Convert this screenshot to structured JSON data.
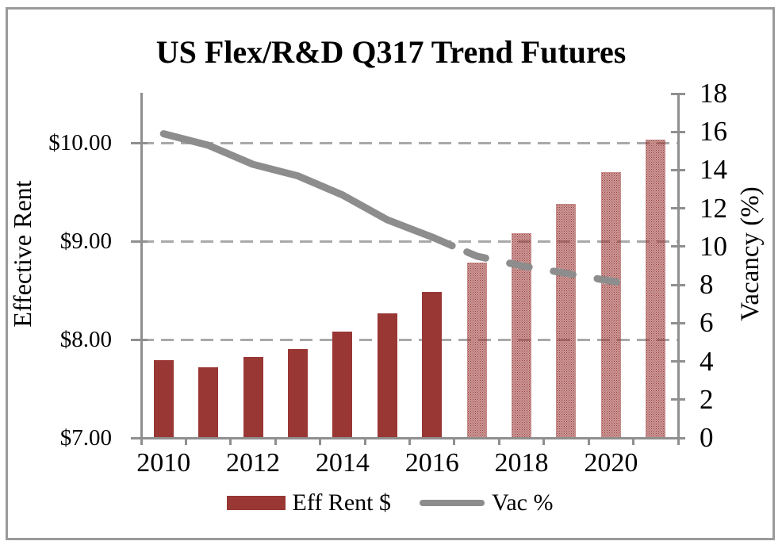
{
  "chart_data": {
    "type": "bar+line combo (dual axis)",
    "title": "US Flex/R&D Q317 Trend Futures",
    "categories": [
      2010,
      2011,
      2012,
      2013,
      2014,
      2015,
      2016,
      2017,
      2018,
      2019,
      2020,
      2021
    ],
    "series": [
      {
        "name": "Eff Rent $",
        "type": "bar",
        "axis": "left",
        "values": [
          7.79,
          7.72,
          7.82,
          7.9,
          8.08,
          8.27,
          8.48,
          8.78,
          9.08,
          9.38,
          9.7,
          10.03
        ],
        "forecast_from_index": 7,
        "forecast_style": "dotted-pattern fill",
        "color": "#993735"
      },
      {
        "name": "Vac %",
        "type": "line",
        "axis": "right",
        "values": [
          15.9,
          15.3,
          14.3,
          13.7,
          12.7,
          11.4,
          10.5,
          9.5,
          9.0,
          8.6,
          8.2,
          null
        ],
        "forecast_from_index": 7,
        "forecast_style": "dashed",
        "color": "#8d8d8d"
      }
    ],
    "left_axis": {
      "label": "Effective Rent",
      "tick_labels": [
        "$10.00",
        "$9.00",
        "$8.00",
        "$7.00"
      ],
      "tick_values": [
        10,
        9,
        8,
        7
      ],
      "range": [
        7,
        10.5
      ],
      "gridline_values": [
        8,
        9,
        10
      ]
    },
    "right_axis": {
      "label": "Vacancy (%)",
      "tick_labels": [
        "18",
        "16",
        "14",
        "12",
        "10",
        "8",
        "6",
        "4",
        "2",
        "0"
      ],
      "tick_values": [
        18,
        16,
        14,
        12,
        10,
        8,
        6,
        4,
        2,
        0
      ],
      "range": [
        0,
        18
      ]
    },
    "x_axis": {
      "labeled_years": [
        "2010",
        "2012",
        "2014",
        "2016",
        "2018",
        "2020"
      ],
      "boundary_tick_count": 13
    },
    "legend": [
      {
        "label": "Eff Rent $",
        "swatch": "bar"
      },
      {
        "label": "Vac %",
        "swatch": "line"
      }
    ],
    "grid": "horizontal dashed",
    "legend_position": "bottom"
  },
  "colors": {
    "bar": "#993735",
    "line": "#8d8d8d",
    "axis": "#8f8f8f",
    "gridline": "#a9a9a9",
    "frame": "#9a9a9a",
    "text": "#000000",
    "background": "#ffffff"
  }
}
